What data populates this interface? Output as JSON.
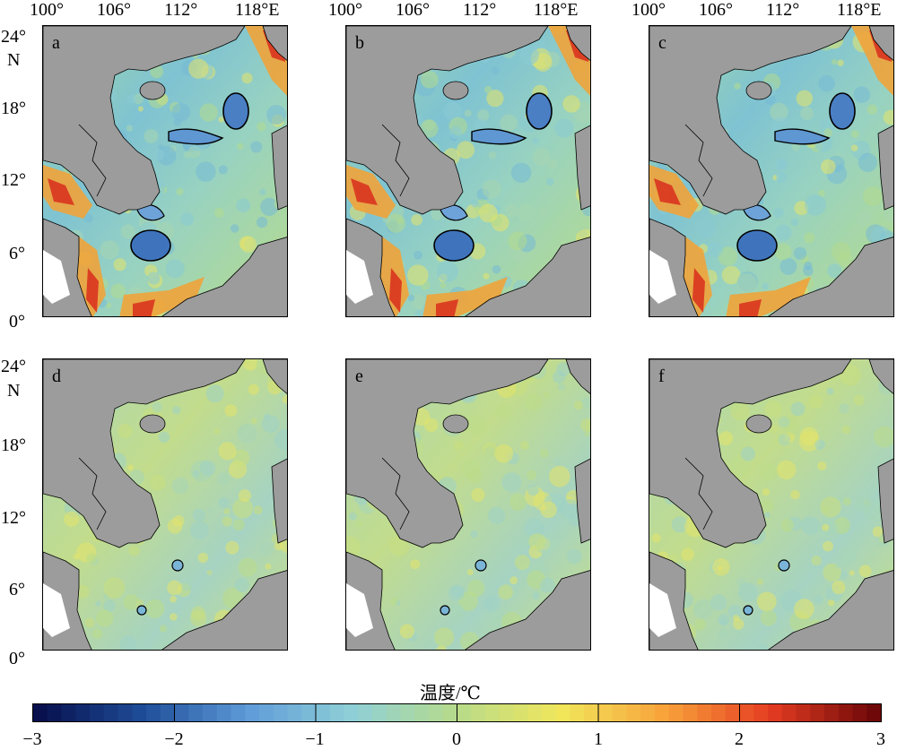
{
  "top_ticks": [
    "100°",
    "106°",
    "112°",
    "118°E"
  ],
  "lat_ticks": [
    "24°",
    "18°",
    "12°",
    "6°",
    "0°"
  ],
  "lat_unit": "N",
  "panels": [
    {
      "letter": "a",
      "anomaly": "strong"
    },
    {
      "letter": "b",
      "anomaly": "strong"
    },
    {
      "letter": "c",
      "anomaly": "strong"
    },
    {
      "letter": "d",
      "anomaly": "weak"
    },
    {
      "letter": "e",
      "anomaly": "weak"
    },
    {
      "letter": "f",
      "anomaly": "weak"
    }
  ],
  "colorbar": {
    "title": "温度/℃",
    "ticks": [
      "−3",
      "−2",
      "−1",
      "0",
      "1",
      "2",
      "3"
    ],
    "range": [
      -3,
      3
    ],
    "colors": [
      "#08104e",
      "#1f4e99",
      "#5f9bd8",
      "#8fd0d7",
      "#b7db8a",
      "#f1e65b",
      "#f8a23a",
      "#e53d22",
      "#6f0808"
    ],
    "land_color": "#9c9c9c"
  },
  "chart_data": {
    "type": "heatmap",
    "title": "",
    "xlabel": "",
    "ylabel": "",
    "lon_ticks": [
      "100°",
      "106°",
      "112°",
      "118°E"
    ],
    "lat_ticks": [
      "0°",
      "6°",
      "12°",
      "18°",
      "24°"
    ],
    "colorbar_range": [
      -3,
      3
    ],
    "panels": [
      "a",
      "b",
      "c",
      "d",
      "e",
      "f"
    ]
  }
}
